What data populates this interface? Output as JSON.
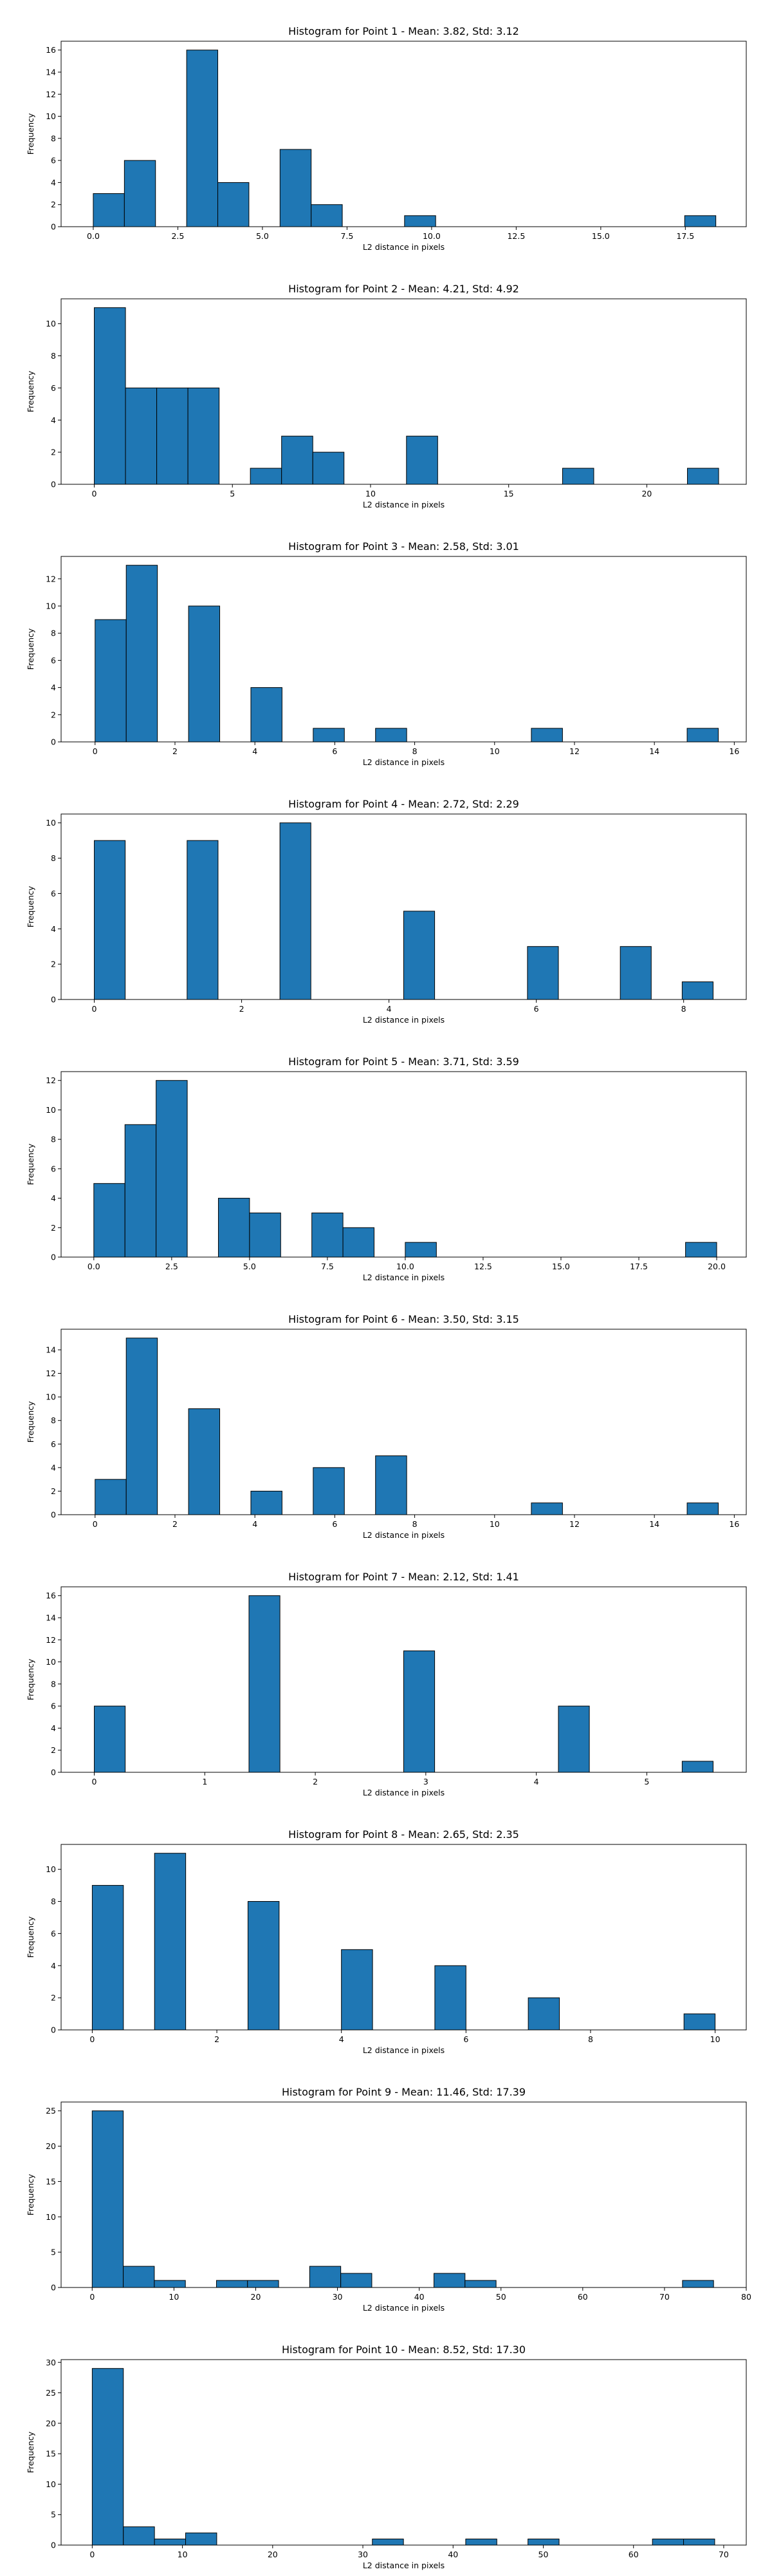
{
  "chart_data": [
    {
      "type": "bar",
      "title": "Histogram for Point 1 - Mean: 3.82, Std: 3.12",
      "xlabel": "L2 distance in pixels",
      "ylabel": "Frequency",
      "xlim": [
        -0.95,
        19.3
      ],
      "ylim": [
        0,
        16.8
      ],
      "xticks": [
        0.0,
        2.5,
        5.0,
        7.5,
        10.0,
        12.5,
        15.0,
        17.5
      ],
      "xtick_labels": [
        "0.0",
        "2.5",
        "5.0",
        "7.5",
        "10.0",
        "12.5",
        "15.0",
        "17.5"
      ],
      "yticks": [
        0,
        2,
        4,
        6,
        8,
        10,
        12,
        14,
        16
      ],
      "bins": [
        {
          "x0": 0.0,
          "x1": 0.92,
          "count": 3
        },
        {
          "x0": 0.92,
          "x1": 1.84,
          "count": 6
        },
        {
          "x0": 2.76,
          "x1": 3.68,
          "count": 16
        },
        {
          "x0": 3.68,
          "x1": 4.6,
          "count": 4
        },
        {
          "x0": 5.52,
          "x1": 6.44,
          "count": 7
        },
        {
          "x0": 6.44,
          "x1": 7.36,
          "count": 2
        },
        {
          "x0": 9.2,
          "x1": 10.12,
          "count": 1
        },
        {
          "x0": 17.48,
          "x1": 18.4,
          "count": 1
        }
      ]
    },
    {
      "type": "bar",
      "title": "Histogram for Point 2 - Mean: 4.21, Std: 4.92",
      "xlabel": "L2 distance in pixels",
      "ylabel": "Frequency",
      "xlim": [
        -1.2,
        23.6
      ],
      "ylim": [
        0,
        11.55
      ],
      "xticks": [
        0,
        5,
        10,
        15,
        20
      ],
      "xtick_labels": [
        "0",
        "5",
        "10",
        "15",
        "20"
      ],
      "yticks": [
        0,
        2,
        4,
        6,
        8,
        10
      ],
      "bins": [
        {
          "x0": 0.0,
          "x1": 1.13,
          "count": 11
        },
        {
          "x0": 1.13,
          "x1": 2.26,
          "count": 6
        },
        {
          "x0": 2.26,
          "x1": 3.39,
          "count": 6
        },
        {
          "x0": 3.39,
          "x1": 4.52,
          "count": 6
        },
        {
          "x0": 5.65,
          "x1": 6.78,
          "count": 1
        },
        {
          "x0": 6.78,
          "x1": 7.91,
          "count": 3
        },
        {
          "x0": 7.91,
          "x1": 9.04,
          "count": 2
        },
        {
          "x0": 11.3,
          "x1": 12.43,
          "count": 3
        },
        {
          "x0": 16.95,
          "x1": 18.08,
          "count": 1
        },
        {
          "x0": 21.47,
          "x1": 22.6,
          "count": 1
        }
      ]
    },
    {
      "type": "bar",
      "title": "Histogram for Point 3 - Mean: 2.58, Std: 3.01",
      "xlabel": "L2 distance in pixels",
      "ylabel": "Frequency",
      "xlim": [
        -0.85,
        16.3
      ],
      "ylim": [
        0,
        13.65
      ],
      "xticks": [
        0,
        2,
        4,
        6,
        8,
        10,
        12,
        14,
        16
      ],
      "xtick_labels": [
        "0",
        "2",
        "4",
        "6",
        "8",
        "10",
        "12",
        "14",
        "16"
      ],
      "yticks": [
        0,
        2,
        4,
        6,
        8,
        10,
        12
      ],
      "bins": [
        {
          "x0": 0.0,
          "x1": 0.78,
          "count": 9
        },
        {
          "x0": 0.78,
          "x1": 1.56,
          "count": 13
        },
        {
          "x0": 2.34,
          "x1": 3.12,
          "count": 10
        },
        {
          "x0": 3.9,
          "x1": 4.68,
          "count": 4
        },
        {
          "x0": 5.46,
          "x1": 6.24,
          "count": 1
        },
        {
          "x0": 7.02,
          "x1": 7.8,
          "count": 1
        },
        {
          "x0": 10.92,
          "x1": 11.7,
          "count": 1
        },
        {
          "x0": 14.82,
          "x1": 15.6,
          "count": 1
        }
      ]
    },
    {
      "type": "bar",
      "title": "Histogram for Point 4 - Mean: 2.72, Std: 2.29",
      "xlabel": "L2 distance in pixels",
      "ylabel": "Frequency",
      "xlim": [
        -0.45,
        8.85
      ],
      "ylim": [
        0,
        10.5
      ],
      "xticks": [
        0,
        2,
        4,
        6,
        8
      ],
      "xtick_labels": [
        "0",
        "2",
        "4",
        "6",
        "8"
      ],
      "yticks": [
        0,
        2,
        4,
        6,
        8,
        10
      ],
      "bins": [
        {
          "x0": 0.0,
          "x1": 0.42,
          "count": 9
        },
        {
          "x0": 1.26,
          "x1": 1.68,
          "count": 9
        },
        {
          "x0": 2.52,
          "x1": 2.94,
          "count": 10
        },
        {
          "x0": 4.2,
          "x1": 4.62,
          "count": 5
        },
        {
          "x0": 5.88,
          "x1": 6.3,
          "count": 3
        },
        {
          "x0": 7.14,
          "x1": 7.56,
          "count": 3
        },
        {
          "x0": 7.98,
          "x1": 8.4,
          "count": 1
        }
      ]
    },
    {
      "type": "bar",
      "title": "Histogram for Point 5 - Mean: 3.71, Std: 3.59",
      "xlabel": "L2 distance in pixels",
      "ylabel": "Frequency",
      "xlim": [
        -1.05,
        20.95
      ],
      "ylim": [
        0,
        12.6
      ],
      "xticks": [
        0.0,
        2.5,
        5.0,
        7.5,
        10.0,
        12.5,
        15.0,
        17.5,
        20.0
      ],
      "xtick_labels": [
        "0.0",
        "2.5",
        "5.0",
        "7.5",
        "10.0",
        "12.5",
        "15.0",
        "17.5",
        "20.0"
      ],
      "yticks": [
        0,
        2,
        4,
        6,
        8,
        10,
        12
      ],
      "bins": [
        {
          "x0": 0.0,
          "x1": 1.0,
          "count": 5
        },
        {
          "x0": 1.0,
          "x1": 2.0,
          "count": 9
        },
        {
          "x0": 2.0,
          "x1": 3.0,
          "count": 12
        },
        {
          "x0": 4.0,
          "x1": 5.0,
          "count": 4
        },
        {
          "x0": 5.0,
          "x1": 6.0,
          "count": 3
        },
        {
          "x0": 7.0,
          "x1": 8.0,
          "count": 3
        },
        {
          "x0": 8.0,
          "x1": 9.0,
          "count": 2
        },
        {
          "x0": 10.0,
          "x1": 11.0,
          "count": 1
        },
        {
          "x0": 19.0,
          "x1": 20.0,
          "count": 1
        }
      ]
    },
    {
      "type": "bar",
      "title": "Histogram for Point 6 - Mean: 3.50, Std: 3.15",
      "xlabel": "L2 distance in pixels",
      "ylabel": "Frequency",
      "xlim": [
        -0.85,
        16.3
      ],
      "ylim": [
        0,
        15.75
      ],
      "xticks": [
        0,
        2,
        4,
        6,
        8,
        10,
        12,
        14,
        16
      ],
      "xtick_labels": [
        "0",
        "2",
        "4",
        "6",
        "8",
        "10",
        "12",
        "14",
        "16"
      ],
      "yticks": [
        0,
        2,
        4,
        6,
        8,
        10,
        12,
        14
      ],
      "bins": [
        {
          "x0": 0.0,
          "x1": 0.78,
          "count": 3
        },
        {
          "x0": 0.78,
          "x1": 1.56,
          "count": 15
        },
        {
          "x0": 2.34,
          "x1": 3.12,
          "count": 9
        },
        {
          "x0": 3.9,
          "x1": 4.68,
          "count": 2
        },
        {
          "x0": 5.46,
          "x1": 6.24,
          "count": 4
        },
        {
          "x0": 7.02,
          "x1": 7.8,
          "count": 5
        },
        {
          "x0": 10.92,
          "x1": 11.7,
          "count": 1
        },
        {
          "x0": 14.82,
          "x1": 15.6,
          "count": 1
        }
      ]
    },
    {
      "type": "bar",
      "title": "Histogram for Point 7 - Mean: 2.12, Std: 1.41",
      "xlabel": "L2 distance in pixels",
      "ylabel": "Frequency",
      "xlim": [
        -0.3,
        5.9
      ],
      "ylim": [
        0,
        16.8
      ],
      "xticks": [
        0,
        1,
        2,
        3,
        4,
        5
      ],
      "xtick_labels": [
        "0",
        "1",
        "2",
        "3",
        "4",
        "5"
      ],
      "yticks": [
        0,
        2,
        4,
        6,
        8,
        10,
        12,
        14,
        16
      ],
      "bins": [
        {
          "x0": 0.0,
          "x1": 0.28,
          "count": 6
        },
        {
          "x0": 1.4,
          "x1": 1.68,
          "count": 16
        },
        {
          "x0": 2.8,
          "x1": 3.08,
          "count": 11
        },
        {
          "x0": 4.2,
          "x1": 4.48,
          "count": 6
        },
        {
          "x0": 5.32,
          "x1": 5.6,
          "count": 1
        }
      ]
    },
    {
      "type": "bar",
      "title": "Histogram for Point 8 - Mean: 2.65, Std: 2.35",
      "xlabel": "L2 distance in pixels",
      "ylabel": "Frequency",
      "xlim": [
        -0.5,
        10.5
      ],
      "ylim": [
        0,
        11.55
      ],
      "xticks": [
        0,
        2,
        4,
        6,
        8,
        10
      ],
      "xtick_labels": [
        "0",
        "2",
        "4",
        "6",
        "8",
        "10"
      ],
      "yticks": [
        0,
        2,
        4,
        6,
        8,
        10
      ],
      "bins": [
        {
          "x0": 0.0,
          "x1": 0.5,
          "count": 9
        },
        {
          "x0": 1.0,
          "x1": 1.5,
          "count": 11
        },
        {
          "x0": 2.5,
          "x1": 3.0,
          "count": 8
        },
        {
          "x0": 4.0,
          "x1": 4.5,
          "count": 5
        },
        {
          "x0": 5.5,
          "x1": 6.0,
          "count": 4
        },
        {
          "x0": 7.0,
          "x1": 7.5,
          "count": 2
        },
        {
          "x0": 9.5,
          "x1": 10.0,
          "count": 1
        }
      ]
    },
    {
      "type": "bar",
      "title": "Histogram for Point 9 - Mean: 11.46, Std: 17.39",
      "xlabel": "L2 distance in pixels",
      "ylabel": "Frequency",
      "xlim": [
        -3.8,
        80.0
      ],
      "ylim": [
        0,
        26.25
      ],
      "xticks": [
        0,
        10,
        20,
        30,
        40,
        50,
        60,
        70,
        80
      ],
      "xtick_labels": [
        "0",
        "10",
        "20",
        "30",
        "40",
        "50",
        "60",
        "70",
        "80"
      ],
      "yticks": [
        0,
        5,
        10,
        15,
        20,
        25
      ],
      "bins": [
        {
          "x0": 0.0,
          "x1": 3.8,
          "count": 25
        },
        {
          "x0": 3.8,
          "x1": 7.6,
          "count": 3
        },
        {
          "x0": 7.6,
          "x1": 11.4,
          "count": 1
        },
        {
          "x0": 15.2,
          "x1": 19.0,
          "count": 1
        },
        {
          "x0": 19.0,
          "x1": 22.8,
          "count": 1
        },
        {
          "x0": 26.6,
          "x1": 30.4,
          "count": 3
        },
        {
          "x0": 30.4,
          "x1": 34.2,
          "count": 2
        },
        {
          "x0": 41.8,
          "x1": 45.6,
          "count": 2
        },
        {
          "x0": 45.6,
          "x1": 49.4,
          "count": 1
        },
        {
          "x0": 72.2,
          "x1": 76.0,
          "count": 1
        }
      ]
    },
    {
      "type": "bar",
      "title": "Histogram for Point 10 - Mean: 8.52, Std: 17.30",
      "xlabel": "L2 distance in pixels",
      "ylabel": "Frequency",
      "xlim": [
        -3.45,
        72.5
      ],
      "ylim": [
        0,
        30.45
      ],
      "xticks": [
        0,
        10,
        20,
        30,
        40,
        50,
        60,
        70
      ],
      "xtick_labels": [
        "0",
        "10",
        "20",
        "30",
        "40",
        "50",
        "60",
        "70"
      ],
      "yticks": [
        0,
        5,
        10,
        15,
        20,
        25,
        30
      ],
      "bins": [
        {
          "x0": 0.0,
          "x1": 3.45,
          "count": 29
        },
        {
          "x0": 3.45,
          "x1": 6.9,
          "count": 3
        },
        {
          "x0": 6.9,
          "x1": 10.35,
          "count": 1
        },
        {
          "x0": 10.35,
          "x1": 13.8,
          "count": 2
        },
        {
          "x0": 31.05,
          "x1": 34.5,
          "count": 1
        },
        {
          "x0": 41.4,
          "x1": 44.85,
          "count": 1
        },
        {
          "x0": 48.3,
          "x1": 51.75,
          "count": 1
        },
        {
          "x0": 62.1,
          "x1": 65.55,
          "count": 1
        },
        {
          "x0": 65.55,
          "x1": 69.0,
          "count": 1
        }
      ]
    }
  ]
}
